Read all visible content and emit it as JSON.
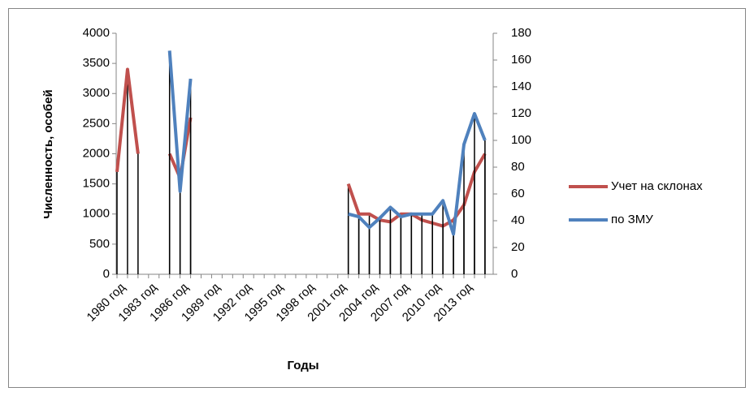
{
  "chart_data": {
    "type": "line",
    "y_label": "Численность, особей",
    "x_label": "Годы",
    "categories": [
      "1980 год",
      null,
      null,
      "1983 год",
      null,
      null,
      "1986 год",
      null,
      null,
      "1989 год",
      null,
      null,
      "1992 год",
      null,
      null,
      "1995 год",
      null,
      null,
      "1998 год",
      null,
      null,
      "2001 год",
      null,
      null,
      "2004 год",
      null,
      null,
      "2007 год",
      null,
      null,
      "2010 год",
      null,
      null,
      "2013 год",
      null,
      null
    ],
    "series": [
      {
        "name": "Учет на склонах",
        "color": "#c0504d",
        "axis": "y",
        "values": [
          1700,
          3400,
          2000,
          null,
          null,
          2000,
          1600,
          2600,
          null,
          null,
          null,
          null,
          null,
          null,
          null,
          null,
          null,
          null,
          null,
          null,
          null,
          null,
          1500,
          1000,
          1000,
          900,
          870,
          1000,
          1000,
          900,
          850,
          800,
          900,
          1150,
          1700,
          2000
        ]
      },
      {
        "name": "по ЗМУ",
        "color": "#4f81bd",
        "axis": "y2",
        "values": [
          null,
          null,
          null,
          null,
          null,
          167,
          62,
          146,
          null,
          null,
          null,
          null,
          null,
          null,
          null,
          null,
          null,
          null,
          null,
          null,
          null,
          null,
          45,
          43,
          35,
          42,
          50,
          43,
          45,
          45,
          45,
          55,
          30,
          97,
          120,
          100
        ]
      }
    ],
    "ylim": [
      0,
      4000
    ],
    "yticks": [
      0,
      500,
      1000,
      1500,
      2000,
      2500,
      3000,
      3500,
      4000
    ],
    "y2lim": [
      0,
      180
    ],
    "y2ticks": [
      0,
      20,
      40,
      60,
      80,
      100,
      120,
      140,
      160,
      180
    ],
    "drop_lines": true,
    "legend": "right"
  }
}
